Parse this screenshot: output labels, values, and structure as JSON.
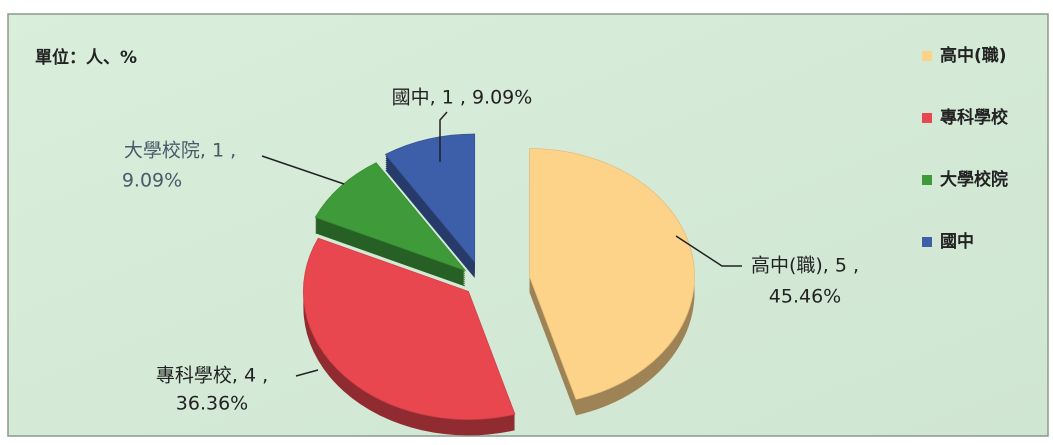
{
  "chart_data": {
    "type": "pie",
    "title": "單位：人、%",
    "categories": [
      "高中(職)",
      "專科學校",
      "大學校院",
      "國中"
    ],
    "values": [
      5,
      4,
      1,
      1
    ],
    "value_labels": [
      [
        "高中(職), 5 ,",
        "45.46%"
      ],
      [
        "專科學校, 4 ,",
        "36.36%"
      ],
      [
        "大學校院, 1 ,",
        "9.09%"
      ],
      [
        "國中, 1 , 9.09%"
      ]
    ],
    "colors": [
      "#fdd38a",
      "#e9474f",
      "#3f9b3a",
      "#3d5fa9"
    ],
    "legend": "right"
  }
}
